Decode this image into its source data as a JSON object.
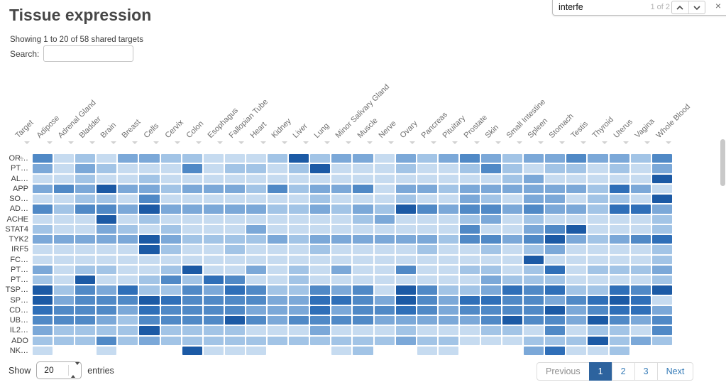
{
  "page": {
    "title": "Tissue expression",
    "summary": "Showing 1 to 20 of 58 shared targets",
    "search_label": "Search:",
    "search_value": "",
    "search_placeholder": ""
  },
  "find_bar": {
    "query": "interfe",
    "match_count": "1 of 2",
    "close_label": "×"
  },
  "table": {
    "corner_header": "Target",
    "columns": [
      "Adipose",
      "Adrenal Gland",
      "Bladder",
      "Brain",
      "Breast",
      "Cells",
      "Cervix",
      "Colon",
      "Esophagus",
      "Fallopian Tube",
      "Heart",
      "Kidney",
      "Liver",
      "Lung",
      "Minor Salivary Gland",
      "Muscle",
      "Nerve",
      "Ovary",
      "Pancreas",
      "Pituitary",
      "Prostate",
      "Skin",
      "Small Intestine",
      "Spleen",
      "Stomach",
      "Testis",
      "Thyroid",
      "Uterus",
      "Vagina",
      "Whole Blood"
    ],
    "rows": [
      {
        "label": "OR…",
        "cells": [
          5,
          2,
          3,
          2,
          4,
          4,
          3,
          3,
          2,
          2,
          2,
          3,
          7,
          3,
          4,
          4,
          2,
          4,
          3,
          4,
          5,
          4,
          3,
          4,
          4,
          5,
          4,
          4,
          3,
          5
        ]
      },
      {
        "label": "PT…",
        "cells": [
          4,
          2,
          4,
          3,
          2,
          2,
          2,
          5,
          2,
          3,
          3,
          2,
          3,
          7,
          2,
          2,
          2,
          3,
          2,
          2,
          3,
          5,
          3,
          2,
          3,
          3,
          2,
          3,
          2,
          4
        ]
      },
      {
        "label": "AL…",
        "cells": [
          2,
          2,
          3,
          2,
          2,
          3,
          2,
          2,
          2,
          2,
          2,
          2,
          2,
          2,
          2,
          2,
          2,
          2,
          2,
          2,
          2,
          2,
          3,
          4,
          2,
          2,
          2,
          2,
          2,
          7
        ]
      },
      {
        "label": "APP",
        "cells": [
          4,
          5,
          4,
          7,
          4,
          4,
          3,
          4,
          4,
          4,
          3,
          5,
          3,
          4,
          4,
          5,
          2,
          4,
          4,
          3,
          4,
          4,
          4,
          4,
          4,
          4,
          3,
          6,
          4,
          2
        ]
      },
      {
        "label": "SO…",
        "cells": [
          2,
          2,
          3,
          3,
          2,
          5,
          2,
          2,
          2,
          2,
          2,
          2,
          2,
          3,
          2,
          2,
          2,
          3,
          2,
          2,
          4,
          3,
          2,
          4,
          4,
          2,
          3,
          3,
          2,
          7
        ]
      },
      {
        "label": "AD…",
        "cells": [
          5,
          3,
          5,
          5,
          4,
          7,
          4,
          4,
          4,
          4,
          4,
          3,
          3,
          4,
          3,
          4,
          3,
          7,
          5,
          4,
          5,
          5,
          4,
          5,
          4,
          4,
          3,
          6,
          6,
          4
        ]
      },
      {
        "label": "ACHE",
        "cells": [
          2,
          2,
          2,
          7,
          2,
          3,
          2,
          2,
          2,
          2,
          2,
          2,
          2,
          2,
          2,
          3,
          4,
          2,
          2,
          2,
          3,
          4,
          2,
          3,
          2,
          2,
          2,
          2,
          2,
          3
        ]
      },
      {
        "label": "STAT4",
        "cells": [
          3,
          2,
          2,
          4,
          3,
          2,
          3,
          2,
          2,
          2,
          4,
          2,
          2,
          2,
          2,
          2,
          2,
          2,
          2,
          2,
          5,
          2,
          2,
          4,
          5,
          7,
          2,
          2,
          2,
          3
        ]
      },
      {
        "label": "TYK2",
        "cells": [
          4,
          4,
          4,
          4,
          4,
          7,
          4,
          3,
          3,
          3,
          3,
          4,
          3,
          4,
          4,
          4,
          4,
          4,
          4,
          3,
          5,
          5,
          4,
          5,
          7,
          4,
          3,
          4,
          5,
          6
        ]
      },
      {
        "label": "IRF5",
        "cells": [
          2,
          2,
          2,
          2,
          2,
          7,
          3,
          2,
          2,
          3,
          2,
          2,
          2,
          3,
          2,
          2,
          2,
          2,
          3,
          2,
          2,
          3,
          2,
          3,
          4,
          2,
          2,
          2,
          2,
          3
        ]
      },
      {
        "label": "FC…",
        "cells": [
          2,
          2,
          2,
          2,
          2,
          2,
          2,
          2,
          2,
          2,
          2,
          2,
          2,
          2,
          2,
          2,
          2,
          2,
          2,
          2,
          2,
          2,
          2,
          7,
          2,
          2,
          2,
          2,
          2,
          3
        ]
      },
      {
        "label": "PT…",
        "cells": [
          4,
          2,
          3,
          3,
          2,
          2,
          3,
          7,
          2,
          2,
          4,
          2,
          3,
          2,
          4,
          2,
          2,
          5,
          2,
          2,
          3,
          3,
          2,
          3,
          6,
          2,
          3,
          3,
          3,
          4
        ]
      },
      {
        "label": "PT…",
        "cells": [
          3,
          2,
          7,
          2,
          2,
          3,
          5,
          3,
          6,
          5,
          2,
          2,
          3,
          2,
          2,
          2,
          2,
          2,
          2,
          2,
          2,
          4,
          3,
          3,
          3,
          2,
          2,
          2,
          2,
          3
        ]
      },
      {
        "label": "TSP…",
        "cells": [
          7,
          3,
          5,
          4,
          6,
          3,
          3,
          5,
          4,
          6,
          5,
          3,
          3,
          5,
          4,
          5,
          2,
          7,
          5,
          3,
          3,
          4,
          6,
          5,
          6,
          3,
          3,
          6,
          5,
          7
        ]
      },
      {
        "label": "SP…",
        "cells": [
          7,
          4,
          5,
          5,
          5,
          7,
          6,
          5,
          5,
          5,
          5,
          4,
          4,
          6,
          6,
          5,
          4,
          7,
          5,
          4,
          6,
          6,
          5,
          5,
          4,
          5,
          6,
          7,
          6,
          2
        ]
      },
      {
        "label": "CD…",
        "cells": [
          6,
          5,
          5,
          5,
          4,
          6,
          5,
          5,
          5,
          5,
          4,
          4,
          4,
          6,
          4,
          5,
          5,
          6,
          5,
          4,
          5,
          5,
          5,
          5,
          7,
          4,
          5,
          6,
          6,
          4
        ]
      },
      {
        "label": "UB…",
        "cells": [
          5,
          5,
          5,
          4,
          3,
          5,
          5,
          5,
          5,
          7,
          5,
          4,
          5,
          5,
          5,
          5,
          4,
          4,
          4,
          4,
          4,
          5,
          7,
          5,
          5,
          4,
          7,
          5,
          4,
          5
        ]
      },
      {
        "label": "IL2…",
        "cells": [
          4,
          3,
          3,
          3,
          3,
          7,
          3,
          3,
          3,
          3,
          2,
          2,
          2,
          4,
          2,
          2,
          2,
          3,
          2,
          2,
          2,
          3,
          3,
          2,
          5,
          2,
          3,
          3,
          2,
          5
        ]
      },
      {
        "label": "ADO",
        "cells": [
          3,
          3,
          3,
          5,
          3,
          4,
          3,
          3,
          3,
          3,
          3,
          3,
          3,
          3,
          3,
          3,
          3,
          4,
          3,
          3,
          2,
          2,
          2,
          3,
          3,
          3,
          7,
          3,
          4,
          3
        ]
      },
      {
        "label": "NK…",
        "cells": [
          2,
          0,
          0,
          2,
          0,
          0,
          0,
          7,
          2,
          2,
          2,
          0,
          0,
          0,
          2,
          3,
          0,
          0,
          2,
          2,
          0,
          0,
          0,
          4,
          6,
          2,
          2,
          3,
          0,
          0
        ]
      }
    ]
  },
  "palette": [
    "#ffffff",
    "#dbe8f7",
    "#c6dbf0",
    "#a2c4e6",
    "#7ba8d8",
    "#5089c6",
    "#2f6fb8",
    "#1c5aa5"
  ],
  "footer": {
    "show_label": "Show",
    "page_size_value": "20",
    "entries_label": "entries"
  },
  "pagination": {
    "previous_label": "Previous",
    "pages": [
      "1",
      "2",
      "3"
    ],
    "active_page": "1",
    "next_label": "Next"
  }
}
